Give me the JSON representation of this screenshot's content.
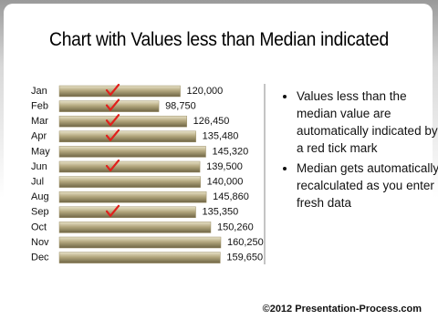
{
  "chart_data": {
    "type": "bar",
    "orientation": "horizontal",
    "title": "Chart with Values less than Median indicated",
    "categories": [
      "Jan",
      "Feb",
      "Mar",
      "Apr",
      "May",
      "Jun",
      "Jul",
      "Aug",
      "Sep",
      "Oct",
      "Nov",
      "Dec"
    ],
    "values": [
      120000,
      98750,
      126450,
      135480,
      145320,
      139500,
      140000,
      145860,
      135350,
      150260,
      160250,
      159650
    ],
    "value_labels": [
      "120,000",
      "98,750",
      "126,450",
      "135,480",
      "145,320",
      "139,500",
      "140,000",
      "145,860",
      "135,350",
      "150,260",
      "160,250",
      "159,650"
    ],
    "color": "#9c9068",
    "tick_color": "#e0201c",
    "bullets": [
      "Values less than the median value are automatically indicated by a red tick mark",
      "Median gets automatically recalculated as you enter fresh data"
    ],
    "footer": "©2012 Presentation-Process.com"
  }
}
